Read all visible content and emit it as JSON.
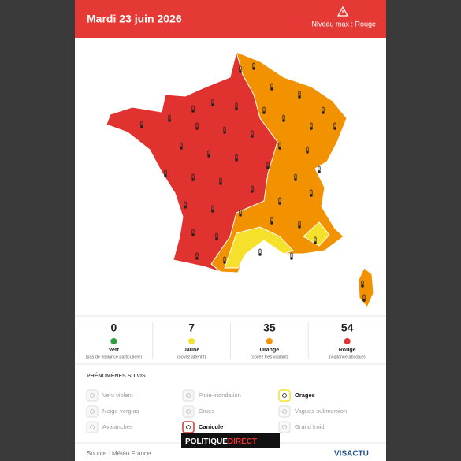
{
  "header": {
    "title": "Mardi 23 juin 2026",
    "level": "Niveau max : Rouge"
  },
  "counts": [
    {
      "value": 0,
      "label": "Vert",
      "note": "(pas de vigilance particulière)",
      "color": "#2e9e3e"
    },
    {
      "value": 7,
      "label": "Jaune",
      "note": "(soyez attentif)",
      "color": "#f5e12b"
    },
    {
      "value": 35,
      "label": "Orange",
      "note": "(soyez très vigilant)",
      "color": "#f39200"
    },
    {
      "value": 54,
      "label": "Rouge",
      "note": "(vigilance absolue)",
      "color": "#e0322e"
    }
  ],
  "phenomena": {
    "title": "PHÉNOMÈNES SUIVIS",
    "items": [
      {
        "label": "Vent violent",
        "active": false
      },
      {
        "label": "Pluie-inondation",
        "active": false
      },
      {
        "label": "Orages",
        "active": true,
        "color": "#f5e12b"
      },
      {
        "label": "Neige-verglas",
        "active": false
      },
      {
        "label": "Crues",
        "active": false
      },
      {
        "label": "Vagues-submersion",
        "active": false
      },
      {
        "label": "Avalanches",
        "active": false
      },
      {
        "label": "Canicule",
        "active": true,
        "color": "#e0322e"
      },
      {
        "label": "Grand froid",
        "active": false
      }
    ]
  },
  "footer": {
    "source": "Source : Météo France",
    "brand": "VISACTU"
  },
  "watermark": {
    "part1": "POLITIQUE",
    "part2": "DIRECT"
  }
}
